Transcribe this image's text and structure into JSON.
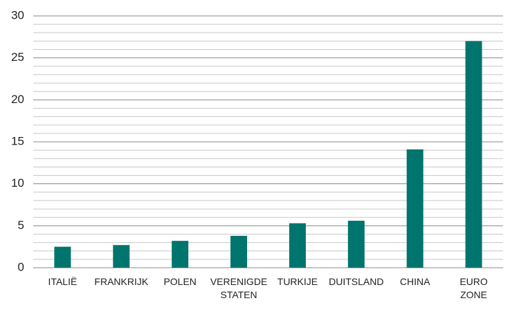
{
  "chart_data": {
    "type": "bar",
    "categories": [
      "ITALIË",
      "FRANKRIJK",
      "POLEN",
      "VERENIGDE STATEN",
      "TURKIJE",
      "DUITSLAND",
      "CHINA",
      "EURO ZONE"
    ],
    "values": [
      2.5,
      2.7,
      3.2,
      3.8,
      5.3,
      5.6,
      14.1,
      27
    ],
    "color": "#00756d",
    "ylim": [
      0,
      30
    ],
    "yticks": [
      0,
      5,
      10,
      15,
      20,
      25,
      30
    ],
    "grid": true,
    "minor_grid": [
      1,
      2,
      3,
      4,
      6,
      7,
      8,
      9,
      11,
      12,
      13,
      14,
      16,
      17,
      18,
      19,
      21,
      22,
      23,
      24,
      26,
      27,
      28,
      29
    ]
  }
}
